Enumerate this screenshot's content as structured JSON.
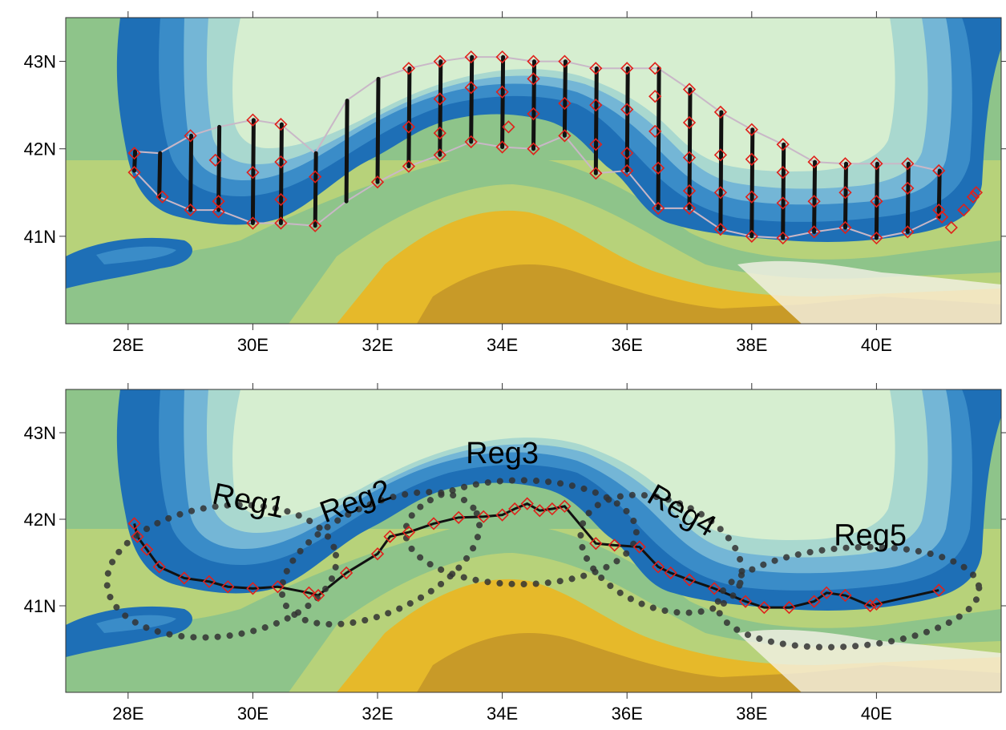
{
  "maps": [
    {
      "id": "top",
      "lon_range": [
        27,
        42
      ],
      "lat_range": [
        40,
        43.5
      ],
      "x_ticks": [
        {
          "lon": 28,
          "label": "28E"
        },
        {
          "lon": 30,
          "label": "30E"
        },
        {
          "lon": 32,
          "label": "32E"
        },
        {
          "lon": 34,
          "label": "34E"
        },
        {
          "lon": 36,
          "label": "36E"
        },
        {
          "lon": 38,
          "label": "38E"
        },
        {
          "lon": 40,
          "label": "40E"
        }
      ],
      "y_ticks": [
        {
          "lat": 43,
          "label": "43N"
        },
        {
          "lat": 42,
          "label": "42N"
        },
        {
          "lat": 41,
          "label": "41N"
        }
      ],
      "transects": [
        {
          "lon": 28.1,
          "lat_start": 41.75,
          "lat_end": 41.97
        },
        {
          "lon": 28.5,
          "lat_start": 41.45,
          "lat_end": 41.95
        },
        {
          "lon": 29.0,
          "lat_start": 41.3,
          "lat_end": 42.15
        },
        {
          "lon": 29.45,
          "lat_start": 41.3,
          "lat_end": 42.25
        },
        {
          "lon": 30.0,
          "lat_start": 41.15,
          "lat_end": 42.33
        },
        {
          "lon": 30.45,
          "lat_start": 41.15,
          "lat_end": 42.28
        },
        {
          "lon": 31.0,
          "lat_start": 41.12,
          "lat_end": 41.95
        },
        {
          "lon": 31.5,
          "lat_start": 41.4,
          "lat_end": 42.55
        },
        {
          "lon": 32.0,
          "lat_start": 41.62,
          "lat_end": 42.8
        },
        {
          "lon": 32.5,
          "lat_start": 41.8,
          "lat_end": 42.92
        },
        {
          "lon": 33.0,
          "lat_start": 41.93,
          "lat_end": 43.0
        },
        {
          "lon": 33.5,
          "lat_start": 42.08,
          "lat_end": 43.05
        },
        {
          "lon": 34.0,
          "lat_start": 42.02,
          "lat_end": 43.05
        },
        {
          "lon": 34.5,
          "lat_start": 42.0,
          "lat_end": 43.0
        },
        {
          "lon": 35.0,
          "lat_start": 42.15,
          "lat_end": 43.0
        },
        {
          "lon": 35.5,
          "lat_start": 41.72,
          "lat_end": 42.92
        },
        {
          "lon": 36.0,
          "lat_start": 41.75,
          "lat_end": 42.92
        },
        {
          "lon": 36.5,
          "lat_start": 41.32,
          "lat_end": 42.92
        },
        {
          "lon": 37.0,
          "lat_start": 41.32,
          "lat_end": 42.68
        },
        {
          "lon": 37.5,
          "lat_start": 41.08,
          "lat_end": 42.42
        },
        {
          "lon": 38.0,
          "lat_start": 41.0,
          "lat_end": 42.22
        },
        {
          "lon": 38.5,
          "lat_start": 40.98,
          "lat_end": 42.05
        },
        {
          "lon": 39.0,
          "lat_start": 41.05,
          "lat_end": 41.85
        },
        {
          "lon": 39.5,
          "lat_start": 41.1,
          "lat_end": 41.83
        },
        {
          "lon": 40.0,
          "lat_start": 40.98,
          "lat_end": 41.83
        },
        {
          "lon": 40.5,
          "lat_start": 41.05,
          "lat_end": 41.83
        },
        {
          "lon": 41.0,
          "lat_start": 41.22,
          "lat_end": 41.75
        }
      ],
      "station_markers": [
        [
          28.1,
          41.95
        ],
        [
          28.1,
          41.73
        ],
        [
          28.55,
          41.45
        ],
        [
          29.0,
          42.15
        ],
        [
          29.0,
          41.3
        ],
        [
          29.4,
          41.87
        ],
        [
          29.45,
          41.4
        ],
        [
          29.45,
          41.28
        ],
        [
          30.0,
          42.33
        ],
        [
          30.0,
          41.73
        ],
        [
          30.0,
          41.15
        ],
        [
          30.45,
          42.28
        ],
        [
          30.45,
          41.85
        ],
        [
          30.45,
          41.42
        ],
        [
          30.45,
          41.15
        ],
        [
          31.0,
          41.68
        ],
        [
          31.0,
          41.12
        ],
        [
          32.0,
          41.62
        ],
        [
          32.5,
          42.92
        ],
        [
          32.5,
          42.25
        ],
        [
          32.5,
          41.8
        ],
        [
          33.0,
          43.0
        ],
        [
          33.0,
          42.57
        ],
        [
          33.0,
          42.18
        ],
        [
          33.0,
          41.93
        ],
        [
          33.5,
          43.05
        ],
        [
          33.5,
          42.7
        ],
        [
          33.5,
          42.08
        ],
        [
          34.0,
          43.05
        ],
        [
          34.0,
          42.65
        ],
        [
          34.1,
          42.25
        ],
        [
          34.0,
          42.02
        ],
        [
          34.5,
          43.0
        ],
        [
          34.5,
          42.8
        ],
        [
          34.5,
          42.4
        ],
        [
          34.5,
          42.0
        ],
        [
          35.0,
          43.0
        ],
        [
          35.0,
          42.52
        ],
        [
          35.0,
          42.15
        ],
        [
          35.5,
          42.92
        ],
        [
          35.5,
          42.5
        ],
        [
          35.5,
          42.05
        ],
        [
          35.5,
          41.72
        ],
        [
          36.0,
          42.92
        ],
        [
          36.0,
          42.45
        ],
        [
          36.0,
          41.95
        ],
        [
          36.0,
          41.75
        ],
        [
          36.45,
          42.92
        ],
        [
          36.45,
          42.6
        ],
        [
          36.45,
          42.2
        ],
        [
          36.5,
          41.78
        ],
        [
          36.5,
          41.32
        ],
        [
          37.0,
          42.68
        ],
        [
          37.0,
          42.3
        ],
        [
          37.0,
          41.9
        ],
        [
          37.0,
          41.52
        ],
        [
          37.0,
          41.32
        ],
        [
          37.5,
          42.42
        ],
        [
          37.5,
          41.93
        ],
        [
          37.5,
          41.5
        ],
        [
          37.5,
          41.08
        ],
        [
          38.0,
          42.22
        ],
        [
          38.0,
          41.88
        ],
        [
          38.0,
          41.45
        ],
        [
          38.0,
          41.0
        ],
        [
          38.5,
          42.05
        ],
        [
          38.5,
          41.73
        ],
        [
          38.5,
          41.38
        ],
        [
          38.5,
          40.98
        ],
        [
          39.0,
          41.85
        ],
        [
          39.0,
          41.4
        ],
        [
          39.0,
          41.05
        ],
        [
          39.5,
          41.83
        ],
        [
          39.5,
          41.5
        ],
        [
          39.5,
          41.1
        ],
        [
          40.0,
          41.83
        ],
        [
          40.0,
          41.4
        ],
        [
          40.0,
          40.98
        ],
        [
          40.5,
          41.83
        ],
        [
          40.5,
          41.55
        ],
        [
          40.5,
          41.05
        ],
        [
          41.0,
          41.75
        ],
        [
          41.0,
          41.3
        ],
        [
          41.05,
          41.22
        ],
        [
          41.2,
          41.1
        ],
        [
          41.4,
          41.3
        ],
        [
          41.55,
          41.45
        ],
        [
          41.6,
          41.5
        ]
      ]
    },
    {
      "id": "bottom",
      "lon_range": [
        27,
        42
      ],
      "lat_range": [
        40,
        43.5
      ],
      "x_ticks": [
        {
          "lon": 28,
          "label": "28E"
        },
        {
          "lon": 30,
          "label": "30E"
        },
        {
          "lon": 32,
          "label": "32E"
        },
        {
          "lon": 34,
          "label": "34E"
        },
        {
          "lon": 36,
          "label": "36E"
        },
        {
          "lon": 38,
          "label": "38E"
        },
        {
          "lon": 40,
          "label": "40E"
        }
      ],
      "y_ticks": [
        {
          "lat": 43,
          "label": "43N"
        },
        {
          "lat": 42,
          "label": "42N"
        },
        {
          "lat": 41,
          "label": "41N"
        }
      ],
      "regions": [
        {
          "label": "Reg1",
          "label_lon": 29.9,
          "label_lat": 42.1,
          "rotation": 12,
          "center_lon": 29.5,
          "center_lat": 41.4,
          "rx_deg": 1.85,
          "ry_deg": 0.75,
          "angle": -8
        },
        {
          "label": "Reg2",
          "label_lon": 31.7,
          "label_lat": 42.1,
          "rotation": -20,
          "center_lon": 32.05,
          "center_lat": 41.55,
          "rx_deg": 1.7,
          "ry_deg": 0.62,
          "angle": -25
        },
        {
          "label": "Reg3",
          "label_lon": 34.0,
          "label_lat": 42.65,
          "rotation": 0,
          "center_lon": 34.3,
          "center_lat": 41.85,
          "rx_deg": 1.85,
          "ry_deg": 0.6,
          "angle": 0
        },
        {
          "label": "Reg4",
          "label_lon": 36.8,
          "label_lat": 42.0,
          "rotation": 30,
          "center_lon": 36.55,
          "center_lat": 41.6,
          "rx_deg": 1.35,
          "ry_deg": 0.62,
          "angle": 22
        },
        {
          "label": "Reg5",
          "label_lon": 39.9,
          "label_lat": 41.7,
          "rotation": 0,
          "center_lon": 39.55,
          "center_lat": 41.1,
          "rx_deg": 2.1,
          "ry_deg": 0.57,
          "angle": -4
        }
      ],
      "station_markers": [
        [
          28.1,
          41.95
        ],
        [
          28.15,
          41.8
        ],
        [
          28.3,
          41.65
        ],
        [
          28.5,
          41.45
        ],
        [
          28.9,
          41.32
        ],
        [
          29.3,
          41.28
        ],
        [
          29.6,
          41.22
        ],
        [
          30.0,
          41.2
        ],
        [
          30.4,
          41.22
        ],
        [
          30.9,
          41.15
        ],
        [
          31.05,
          41.12
        ],
        [
          31.5,
          41.38
        ],
        [
          32.0,
          41.6
        ],
        [
          32.2,
          41.8
        ],
        [
          32.5,
          41.85
        ],
        [
          32.9,
          41.95
        ],
        [
          33.3,
          42.02
        ],
        [
          33.7,
          42.03
        ],
        [
          34.0,
          42.05
        ],
        [
          34.2,
          42.12
        ],
        [
          34.4,
          42.18
        ],
        [
          34.6,
          42.1
        ],
        [
          34.8,
          42.12
        ],
        [
          35.0,
          42.15
        ],
        [
          35.5,
          41.72
        ],
        [
          35.8,
          41.7
        ],
        [
          36.2,
          41.68
        ],
        [
          36.5,
          41.45
        ],
        [
          36.7,
          41.38
        ],
        [
          37.0,
          41.3
        ],
        [
          37.4,
          41.2
        ],
        [
          37.9,
          41.05
        ],
        [
          38.2,
          40.98
        ],
        [
          38.6,
          40.98
        ],
        [
          39.0,
          41.05
        ],
        [
          39.2,
          41.15
        ],
        [
          39.5,
          41.12
        ],
        [
          39.9,
          41.0
        ],
        [
          40.0,
          41.02
        ],
        [
          41.0,
          41.18
        ]
      ]
    }
  ],
  "colors": {
    "sea_deep": "#1e6fb6",
    "sea_shelf1": "#3a8cc8",
    "sea_shelf2": "#74b6d6",
    "sea_shelf3": "#a9d8cf",
    "sea_open": "#d6eed0",
    "land_low": "#8ec48a",
    "land_mid": "#b7d27a",
    "land_high": "#e6b92a",
    "land_peak": "#c89a28",
    "snow": "#f4f1e6",
    "marker": "#e0211b",
    "transect": "#111111"
  }
}
